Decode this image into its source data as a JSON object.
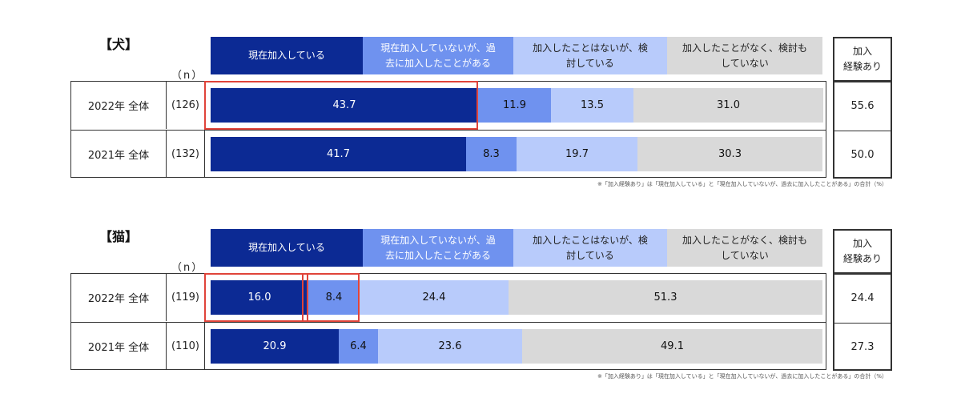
{
  "chart_data": [
    {
      "type": "bar",
      "title": "【犬】",
      "n_label": "（n）",
      "categories": [
        "現在加入している",
        "現在加入していないが、過去に加入したことがある",
        "加入したことはないが、検討している",
        "加入したことがなく、検討もしていない"
      ],
      "headers": [
        [
          "現在加入している"
        ],
        [
          "現在加入していないが、過",
          "去に加入したことがある"
        ],
        [
          "加入したことはないが、検",
          "討している"
        ],
        [
          "加入したことがなく、検討も",
          "していない"
        ]
      ],
      "experience_header": [
        "加入",
        "経験あり"
      ],
      "rows": [
        {
          "label": "2022年 全体",
          "n": "(126)",
          "values": [
            43.7,
            11.9,
            13.5,
            31.0
          ],
          "labels": [
            "43.7",
            "11.9",
            "13.5",
            "31.0"
          ],
          "experience": "55.6"
        },
        {
          "label": "2021年 全体",
          "n": "(132)",
          "values": [
            41.7,
            8.3,
            19.7,
            30.3
          ],
          "labels": [
            "41.7",
            "8.3",
            "19.7",
            "30.3"
          ],
          "experience": "50.0"
        }
      ],
      "highlights": [
        {
          "row": 0,
          "segments": [
            0
          ]
        }
      ],
      "note": "※「加入経験あり」は「現在加入している」と「現在加入していないが、過去に加入したことがある」の合計（%）"
    },
    {
      "type": "bar",
      "title": "【猫】",
      "n_label": "（n）",
      "categories": [
        "現在加入している",
        "現在加入していないが、過去に加入したことがある",
        "加入したことはないが、検討している",
        "加入したことがなく、検討もしていない"
      ],
      "headers": [
        [
          "現在加入している"
        ],
        [
          "現在加入していないが、過",
          "去に加入したことがある"
        ],
        [
          "加入したことはないが、検",
          "討している"
        ],
        [
          "加入したことがなく、検討も",
          "していない"
        ]
      ],
      "experience_header": [
        "加入",
        "経験あり"
      ],
      "rows": [
        {
          "label": "2022年 全体",
          "n": "(119)",
          "values": [
            16.0,
            8.4,
            24.4,
            51.3
          ],
          "labels": [
            "16.0",
            "8.4",
            "24.4",
            "51.3"
          ],
          "experience": "24.4"
        },
        {
          "label": "2021年 全体",
          "n": "(110)",
          "values": [
            20.9,
            6.4,
            23.6,
            49.1
          ],
          "labels": [
            "20.9",
            "6.4",
            "23.6",
            "49.1"
          ],
          "experience": "27.3"
        }
      ],
      "highlights": [
        {
          "row": 0,
          "segments": [
            0
          ]
        },
        {
          "row": 0,
          "segments": [
            1
          ]
        }
      ],
      "note": "※「加入経験あり」は「現在加入している」と「現在加入していないが、過去に加入したことがある」の合計（%）"
    }
  ],
  "colors": {
    "segments": [
      "#0c2a94",
      "#6f92ef",
      "#b8cbfb",
      "#d9d9d9"
    ],
    "segment_text": [
      "#ffffff",
      "#111111",
      "#111111",
      "#111111"
    ],
    "headers": [
      "#0c2a94",
      "#6f92ef",
      "#b8cbfb",
      "#d9d9d9"
    ],
    "header_text": [
      "#ffffff",
      "#ffffff",
      "#222222",
      "#222222"
    ],
    "highlight": "#e0443a"
  }
}
